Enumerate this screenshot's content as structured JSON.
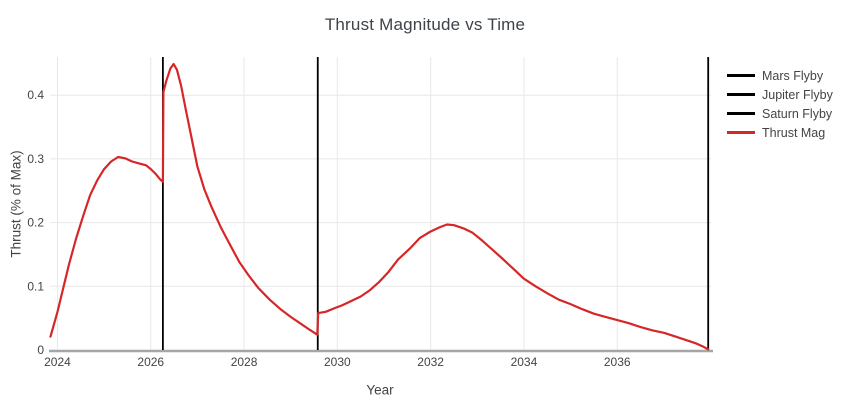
{
  "chart_data": {
    "type": "line",
    "title": "Thrust Magnitude vs Time",
    "xlabel": "Year",
    "ylabel": "Thrust (% of Max)",
    "xlim": [
      2023.84,
      2038.01
    ],
    "ylim": [
      0,
      0.46
    ],
    "xticks": [
      2024,
      2026,
      2028,
      2030,
      2032,
      2034,
      2036
    ],
    "yticks": [
      0,
      0.1,
      0.2,
      0.3,
      0.4
    ],
    "grid": true,
    "legend_position": "right-outside",
    "colors": {
      "grid": "#e8e8e8",
      "axis_line": "#a6a6a6",
      "tick_text": "#444444",
      "title_text": "#3d4349",
      "flyby_line": "#000000",
      "thrust_line": "#d62728",
      "background": "#ffffff"
    },
    "vlines": [
      {
        "name": "Mars Flyby",
        "x": 2026.26,
        "color": "#000000"
      },
      {
        "name": "Jupiter Flyby",
        "x": 2029.58,
        "color": "#000000"
      },
      {
        "name": "Saturn Flyby",
        "x": 2037.95,
        "color": "#000000"
      }
    ],
    "series": [
      {
        "name": "Thrust Mag",
        "color": "#d62728",
        "points": [
          [
            2023.85,
            0.021
          ],
          [
            2024.0,
            0.06
          ],
          [
            2024.1,
            0.09
          ],
          [
            2024.25,
            0.135
          ],
          [
            2024.4,
            0.175
          ],
          [
            2024.55,
            0.21
          ],
          [
            2024.7,
            0.243
          ],
          [
            2024.85,
            0.266
          ],
          [
            2025.0,
            0.284
          ],
          [
            2025.15,
            0.296
          ],
          [
            2025.3,
            0.303
          ],
          [
            2025.45,
            0.301
          ],
          [
            2025.6,
            0.296
          ],
          [
            2025.75,
            0.293
          ],
          [
            2025.9,
            0.29
          ],
          [
            2026.0,
            0.284
          ],
          [
            2026.1,
            0.277
          ],
          [
            2026.2,
            0.268
          ],
          [
            2026.26,
            0.264
          ],
          [
            2026.27,
            0.405
          ],
          [
            2026.33,
            0.422
          ],
          [
            2026.42,
            0.442
          ],
          [
            2026.49,
            0.449
          ],
          [
            2026.56,
            0.44
          ],
          [
            2026.65,
            0.415
          ],
          [
            2026.75,
            0.378
          ],
          [
            2026.87,
            0.335
          ],
          [
            2027.0,
            0.288
          ],
          [
            2027.15,
            0.252
          ],
          [
            2027.3,
            0.225
          ],
          [
            2027.5,
            0.193
          ],
          [
            2027.7,
            0.165
          ],
          [
            2027.9,
            0.138
          ],
          [
            2028.1,
            0.117
          ],
          [
            2028.3,
            0.098
          ],
          [
            2028.55,
            0.079
          ],
          [
            2028.8,
            0.063
          ],
          [
            2029.0,
            0.052
          ],
          [
            2029.2,
            0.042
          ],
          [
            2029.4,
            0.032
          ],
          [
            2029.57,
            0.024
          ],
          [
            2029.59,
            0.058
          ],
          [
            2029.75,
            0.06
          ],
          [
            2029.95,
            0.066
          ],
          [
            2030.1,
            0.07
          ],
          [
            2030.3,
            0.077
          ],
          [
            2030.5,
            0.084
          ],
          [
            2030.7,
            0.094
          ],
          [
            2030.9,
            0.107
          ],
          [
            2031.1,
            0.123
          ],
          [
            2031.3,
            0.142
          ],
          [
            2031.55,
            0.159
          ],
          [
            2031.77,
            0.176
          ],
          [
            2032.0,
            0.186
          ],
          [
            2032.2,
            0.193
          ],
          [
            2032.35,
            0.197
          ],
          [
            2032.5,
            0.196
          ],
          [
            2032.7,
            0.191
          ],
          [
            2032.9,
            0.184
          ],
          [
            2033.1,
            0.172
          ],
          [
            2033.3,
            0.159
          ],
          [
            2033.5,
            0.146
          ],
          [
            2033.75,
            0.129
          ],
          [
            2034.0,
            0.112
          ],
          [
            2034.25,
            0.1
          ],
          [
            2034.5,
            0.089
          ],
          [
            2034.75,
            0.079
          ],
          [
            2035.0,
            0.072
          ],
          [
            2035.25,
            0.064
          ],
          [
            2035.5,
            0.057
          ],
          [
            2035.75,
            0.052
          ],
          [
            2036.0,
            0.047
          ],
          [
            2036.25,
            0.042
          ],
          [
            2036.5,
            0.036
          ],
          [
            2036.75,
            0.031
          ],
          [
            2037.0,
            0.027
          ],
          [
            2037.25,
            0.021
          ],
          [
            2037.5,
            0.015
          ],
          [
            2037.7,
            0.01
          ],
          [
            2037.85,
            0.005
          ],
          [
            2037.95,
            0.001
          ]
        ]
      }
    ]
  }
}
